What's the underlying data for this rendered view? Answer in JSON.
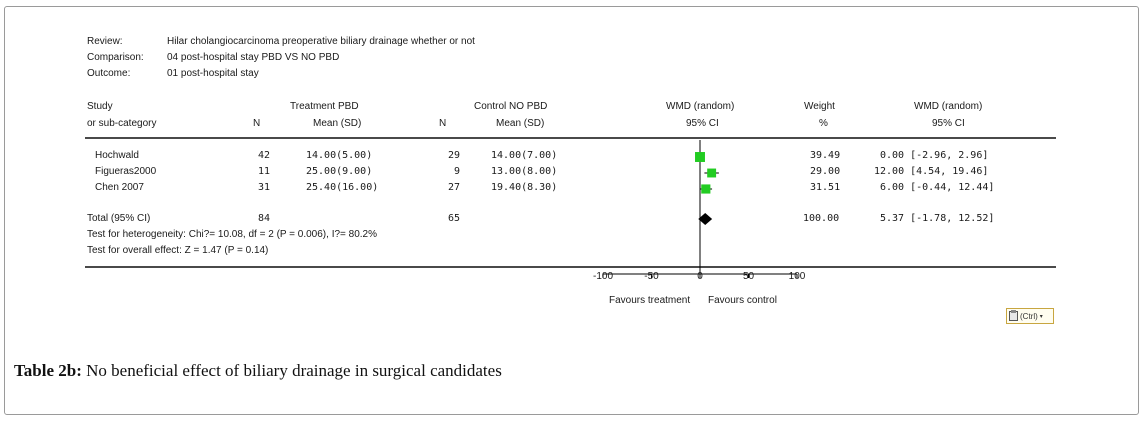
{
  "meta": {
    "review_label": "Review:",
    "review_value": "Hilar cholangiocarcinoma preoperative biliary drainage whether or not",
    "comparison_label": "Comparison:",
    "comparison_value": "04 post-hospital stay  PBD VS NO PBD",
    "outcome_label": "Outcome:",
    "outcome_value": "01 post-hospital stay"
  },
  "headers": {
    "study_1": "Study",
    "study_2": "or sub-category",
    "treatment_1": "Treatment PBD",
    "n_t": "N",
    "mean_t": "Mean (SD)",
    "control_1": "Control NO PBD",
    "n_c": "N",
    "mean_c": "Mean (SD)",
    "wmd_plot_1": "WMD (random)",
    "wmd_plot_2": "95% CI",
    "weight_1": "Weight",
    "weight_2": "%",
    "wmd_1": "WMD (random)",
    "wmd_2": "95% CI"
  },
  "studies": [
    {
      "name": "Hochwald",
      "n_t": "42",
      "mean_t": "14.00(5.00)",
      "n_c": "29",
      "mean_c": "14.00(7.00)",
      "weight": "39.49",
      "ci": "0.00 [-2.96, 2.96]"
    },
    {
      "name": "Figueras2000",
      "n_t": "11",
      "mean_t": "25.00(9.00)",
      "n_c": "9",
      "mean_c": "13.00(8.00)",
      "weight": "29.00",
      "ci": "12.00 [4.54, 19.46]"
    },
    {
      "name": "Chen 2007",
      "n_t": "31",
      "mean_t": "25.40(16.00)",
      "n_c": "27",
      "mean_c": "19.40(8.30)",
      "weight": "31.51",
      "ci": "6.00 [-0.44, 12.44]"
    }
  ],
  "total": {
    "label": "Total (95% CI)",
    "n_t": "84",
    "n_c": "65",
    "weight": "100.00",
    "ci": "5.37 [-1.78, 12.52]",
    "heterogeneity": "Test for heterogeneity: Chi?= 10.08, df = 2 (P = 0.006), I?= 80.2%",
    "overall": "Test for overall effect: Z = 1.47 (P = 0.14)"
  },
  "axis": {
    "favours_left": "Favours treatment",
    "favours_right": "Favours control"
  },
  "ctrl_button": "(Ctrl)",
  "caption": {
    "bold": "Table 2b:",
    "text": " No beneficial effect of biliary drainage in surgical candidates"
  },
  "colors": {
    "marker": "#22cc22",
    "diamond": "#000000",
    "rule": "#4a4a4a"
  },
  "chart_data": {
    "type": "scatter",
    "subtype": "forest-plot",
    "xlim": [
      -100,
      100
    ],
    "ticks": [
      -100,
      -50,
      0,
      50,
      100
    ],
    "series": [
      {
        "points": [
          {
            "label": "Hochwald",
            "estimate": 0.0,
            "lower": -2.96,
            "upper": 2.96,
            "weight": 39.49
          },
          {
            "label": "Figueras2000",
            "estimate": 12.0,
            "lower": 4.54,
            "upper": 19.46,
            "weight": 29.0
          },
          {
            "label": "Chen 2007",
            "estimate": 6.0,
            "lower": -0.44,
            "upper": 12.44,
            "weight": 31.51
          }
        ]
      }
    ],
    "pooled": {
      "label": "Total (95% CI)",
      "estimate": 5.37,
      "lower": -1.78,
      "upper": 12.52
    }
  }
}
